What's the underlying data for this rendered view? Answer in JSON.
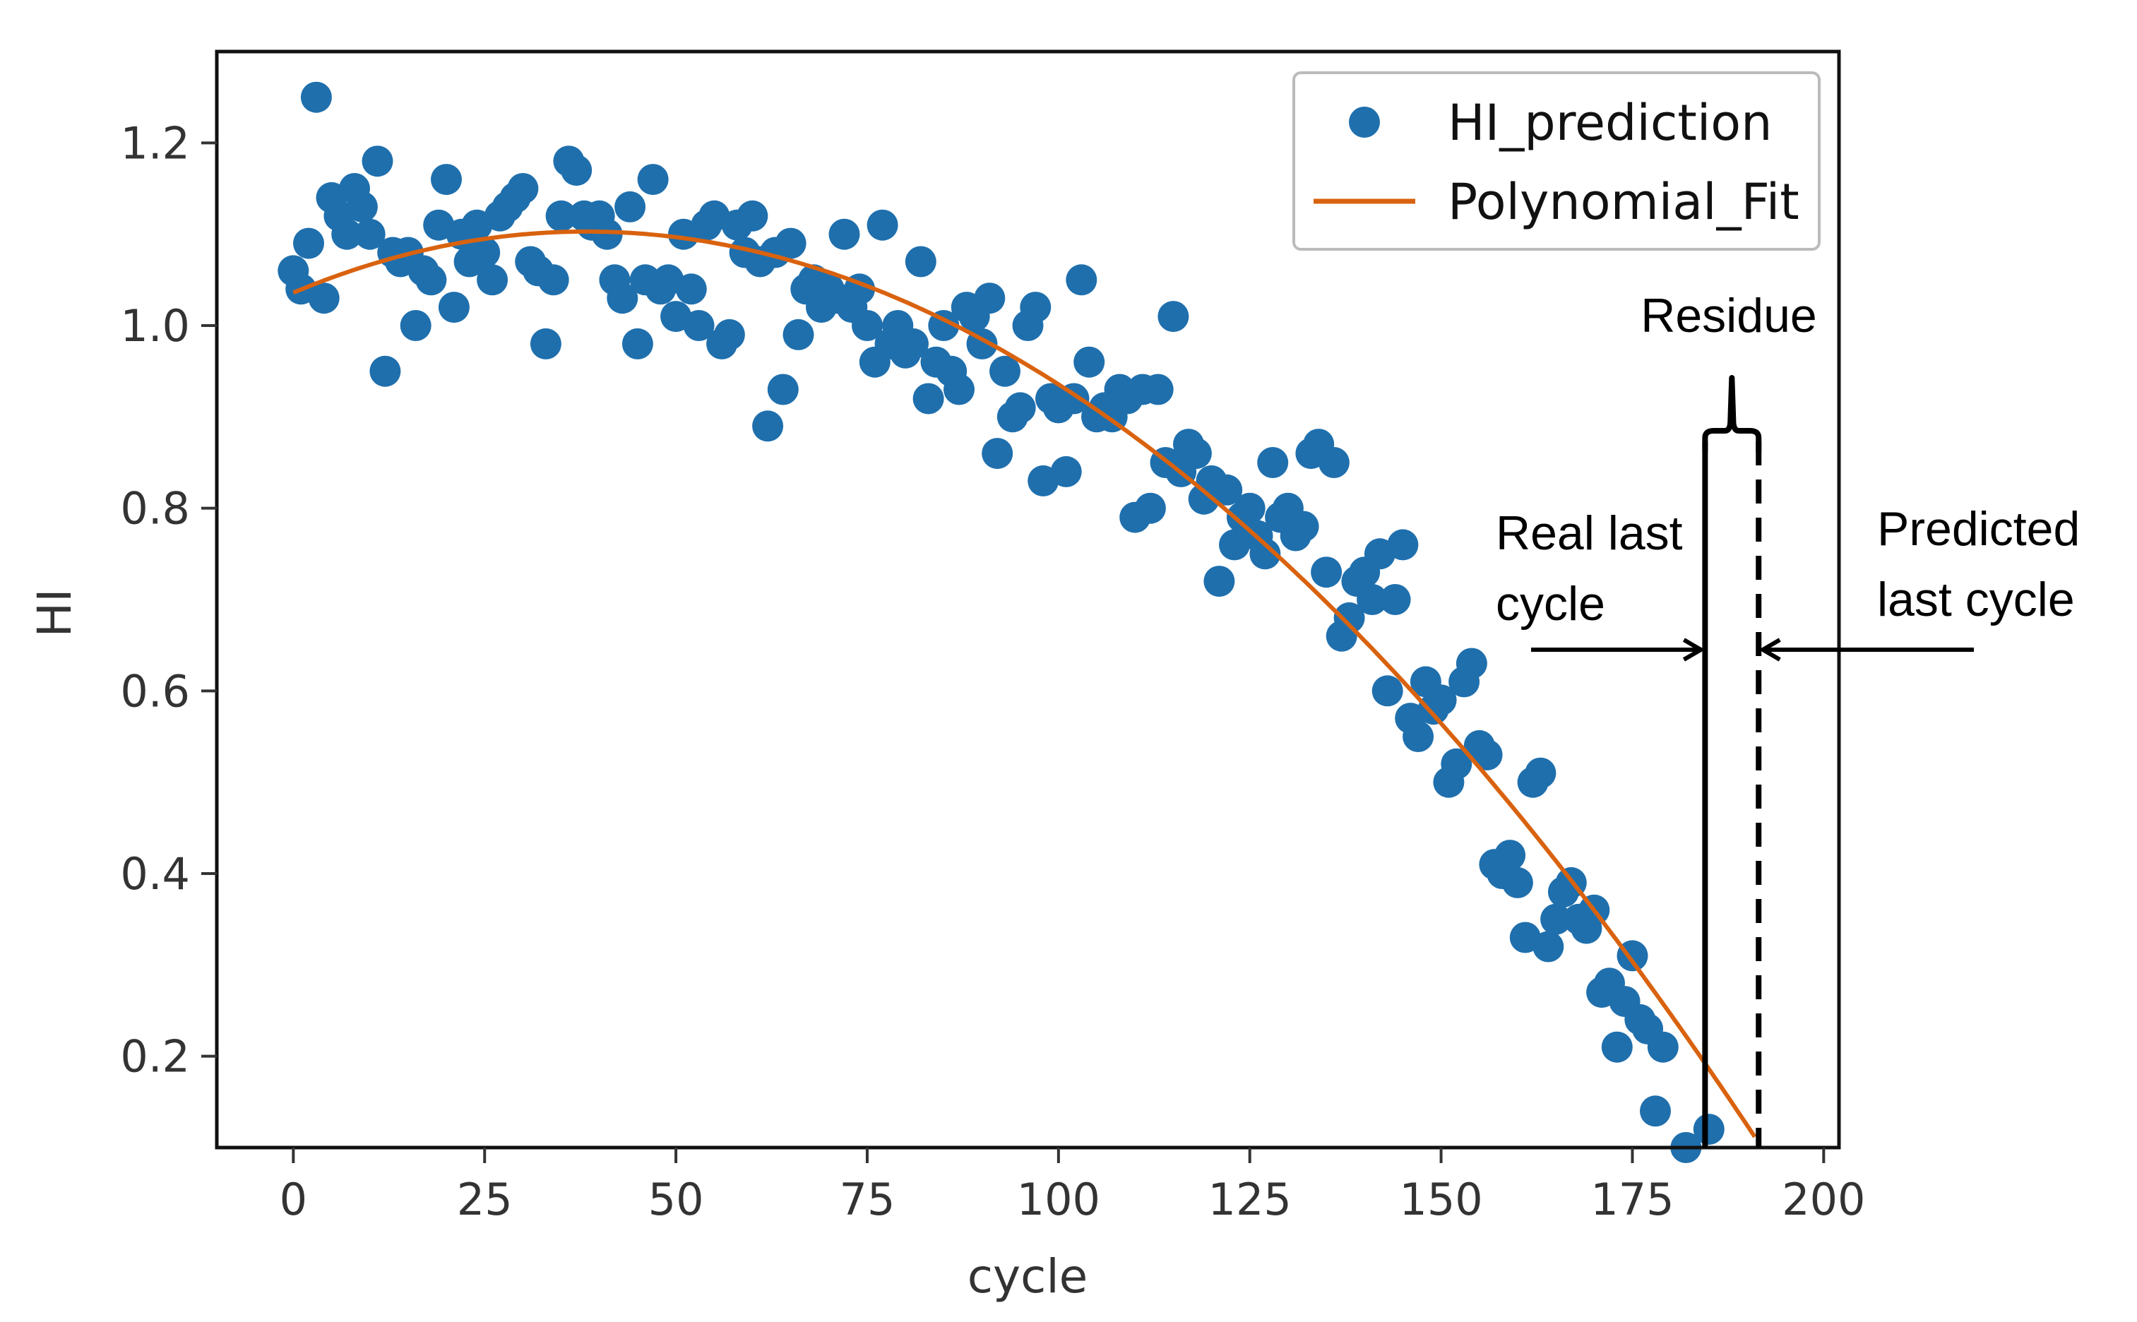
{
  "chart_data": {
    "type": "scatter",
    "title": "",
    "xlabel": "cycle",
    "ylabel": "HI",
    "xlim": [
      -10,
      202
    ],
    "ylim": [
      0.1,
      1.3
    ],
    "xticks": [
      0,
      25,
      50,
      75,
      100,
      125,
      150,
      175,
      200
    ],
    "yticks": [
      0.2,
      0.4,
      0.6,
      0.8,
      1.0,
      1.2
    ],
    "xtick_labels": [
      "0",
      "25",
      "50",
      "75",
      "100",
      "125",
      "150",
      "175",
      "200"
    ],
    "ytick_labels": [
      "0.2",
      "0.4",
      "0.6",
      "0.8",
      "1.0",
      "1.2"
    ],
    "grid": false,
    "legend_position": "top-right",
    "colors": {
      "points": "#1f6fad",
      "fit": "#d9620f",
      "annotation": "#000000"
    },
    "series": [
      {
        "name": "HI_prediction",
        "kind": "scatter",
        "points": [
          [
            0,
            1.06
          ],
          [
            1,
            1.04
          ],
          [
            2,
            1.09
          ],
          [
            3,
            1.25
          ],
          [
            4,
            1.03
          ],
          [
            5,
            1.14
          ],
          [
            6,
            1.12
          ],
          [
            7,
            1.1
          ],
          [
            8,
            1.15
          ],
          [
            9,
            1.13
          ],
          [
            10,
            1.1
          ],
          [
            11,
            1.18
          ],
          [
            12,
            0.95
          ],
          [
            13,
            1.08
          ],
          [
            14,
            1.07
          ],
          [
            15,
            1.08
          ],
          [
            16,
            1.0
          ],
          [
            17,
            1.06
          ],
          [
            18,
            1.05
          ],
          [
            19,
            1.11
          ],
          [
            20,
            1.16
          ],
          [
            21,
            1.02
          ],
          [
            22,
            1.1
          ],
          [
            23,
            1.07
          ],
          [
            24,
            1.11
          ],
          [
            25,
            1.08
          ],
          [
            26,
            1.05
          ],
          [
            27,
            1.12
          ],
          [
            28,
            1.13
          ],
          [
            29,
            1.14
          ],
          [
            30,
            1.15
          ],
          [
            31,
            1.07
          ],
          [
            32,
            1.06
          ],
          [
            33,
            0.98
          ],
          [
            34,
            1.05
          ],
          [
            35,
            1.12
          ],
          [
            36,
            1.18
          ],
          [
            37,
            1.17
          ],
          [
            38,
            1.12
          ],
          [
            39,
            1.11
          ],
          [
            40,
            1.12
          ],
          [
            41,
            1.1
          ],
          [
            42,
            1.05
          ],
          [
            43,
            1.03
          ],
          [
            44,
            1.13
          ],
          [
            45,
            0.98
          ],
          [
            46,
            1.05
          ],
          [
            47,
            1.16
          ],
          [
            48,
            1.04
          ],
          [
            49,
            1.05
          ],
          [
            50,
            1.01
          ],
          [
            51,
            1.1
          ],
          [
            52,
            1.04
          ],
          [
            53,
            1.0
          ],
          [
            54,
            1.11
          ],
          [
            55,
            1.12
          ],
          [
            56,
            0.98
          ],
          [
            57,
            0.99
          ],
          [
            58,
            1.11
          ],
          [
            59,
            1.08
          ],
          [
            60,
            1.12
          ],
          [
            61,
            1.07
          ],
          [
            62,
            0.89
          ],
          [
            63,
            1.08
          ],
          [
            64,
            0.93
          ],
          [
            65,
            1.09
          ],
          [
            66,
            0.99
          ],
          [
            67,
            1.04
          ],
          [
            68,
            1.05
          ],
          [
            69,
            1.02
          ],
          [
            70,
            1.04
          ],
          [
            71,
            1.03
          ],
          [
            72,
            1.1
          ],
          [
            73,
            1.02
          ],
          [
            74,
            1.04
          ],
          [
            75,
            1.0
          ],
          [
            76,
            0.96
          ],
          [
            77,
            1.11
          ],
          [
            78,
            0.98
          ],
          [
            79,
            1.0
          ],
          [
            80,
            0.97
          ],
          [
            81,
            0.98
          ],
          [
            82,
            1.07
          ],
          [
            83,
            0.92
          ],
          [
            84,
            0.96
          ],
          [
            85,
            1.0
          ],
          [
            86,
            0.95
          ],
          [
            87,
            0.93
          ],
          [
            88,
            1.02
          ],
          [
            89,
            1.01
          ],
          [
            90,
            0.98
          ],
          [
            91,
            1.03
          ],
          [
            92,
            0.86
          ],
          [
            93,
            0.95
          ],
          [
            94,
            0.9
          ],
          [
            95,
            0.91
          ],
          [
            96,
            1.0
          ],
          [
            97,
            1.02
          ],
          [
            98,
            0.83
          ],
          [
            99,
            0.92
          ],
          [
            100,
            0.91
          ],
          [
            101,
            0.84
          ],
          [
            102,
            0.92
          ],
          [
            103,
            1.05
          ],
          [
            104,
            0.96
          ],
          [
            105,
            0.9
          ],
          [
            106,
            0.91
          ],
          [
            107,
            0.9
          ],
          [
            108,
            0.93
          ],
          [
            109,
            0.92
          ],
          [
            110,
            0.79
          ],
          [
            111,
            0.93
          ],
          [
            112,
            0.8
          ],
          [
            113,
            0.93
          ],
          [
            114,
            0.85
          ],
          [
            115,
            1.01
          ],
          [
            116,
            0.84
          ],
          [
            117,
            0.87
          ],
          [
            118,
            0.86
          ],
          [
            119,
            0.81
          ],
          [
            120,
            0.83
          ],
          [
            121,
            0.72
          ],
          [
            122,
            0.82
          ],
          [
            123,
            0.76
          ],
          [
            124,
            0.79
          ],
          [
            125,
            0.8
          ],
          [
            126,
            0.77
          ],
          [
            127,
            0.75
          ],
          [
            128,
            0.85
          ],
          [
            129,
            0.79
          ],
          [
            130,
            0.8
          ],
          [
            131,
            0.77
          ],
          [
            132,
            0.78
          ],
          [
            133,
            0.86
          ],
          [
            134,
            0.87
          ],
          [
            135,
            0.73
          ],
          [
            136,
            0.85
          ],
          [
            137,
            0.66
          ],
          [
            138,
            0.68
          ],
          [
            139,
            0.72
          ],
          [
            140,
            0.73
          ],
          [
            141,
            0.7
          ],
          [
            142,
            0.75
          ],
          [
            143,
            0.6
          ],
          [
            144,
            0.7
          ],
          [
            145,
            0.76
          ],
          [
            146,
            0.57
          ],
          [
            147,
            0.55
          ],
          [
            148,
            0.61
          ],
          [
            149,
            0.58
          ],
          [
            150,
            0.59
          ],
          [
            151,
            0.5
          ],
          [
            152,
            0.52
          ],
          [
            153,
            0.61
          ],
          [
            154,
            0.63
          ],
          [
            155,
            0.54
          ],
          [
            156,
            0.53
          ],
          [
            157,
            0.41
          ],
          [
            158,
            0.4
          ],
          [
            159,
            0.42
          ],
          [
            160,
            0.39
          ],
          [
            161,
            0.33
          ],
          [
            162,
            0.5
          ],
          [
            163,
            0.51
          ],
          [
            164,
            0.32
          ],
          [
            165,
            0.35
          ],
          [
            166,
            0.38
          ],
          [
            167,
            0.39
          ],
          [
            168,
            0.35
          ],
          [
            169,
            0.34
          ],
          [
            170,
            0.36
          ],
          [
            171,
            0.27
          ],
          [
            172,
            0.28
          ],
          [
            173,
            0.21
          ],
          [
            174,
            0.26
          ],
          [
            175,
            0.31
          ],
          [
            176,
            0.24
          ],
          [
            177,
            0.23
          ],
          [
            178,
            0.14
          ],
          [
            179,
            0.21
          ],
          [
            182,
            0.1
          ],
          [
            185,
            0.12
          ]
        ]
      },
      {
        "name": "Polynomial_Fit",
        "kind": "line",
        "x_range": [
          0,
          191
        ],
        "coefficients": [
          1.036,
          0.003516,
          -4.68e-05,
          1.6e-08
        ]
      }
    ],
    "annotations": {
      "real_last_cycle": {
        "label_line1": "Real last",
        "label_line2": "cycle",
        "x": 184.5,
        "style": "solid"
      },
      "predicted_last_cycle": {
        "label_line1": "Predicted",
        "label_line2": "last cycle",
        "x": 191.5,
        "style": "dashed"
      },
      "residue": {
        "label": "Residue"
      }
    }
  }
}
